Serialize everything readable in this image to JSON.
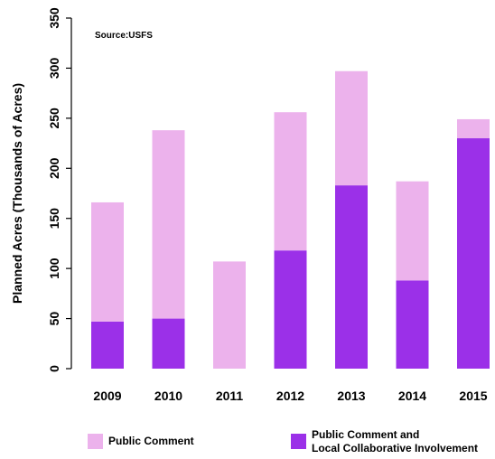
{
  "chart_data": {
    "type": "bar",
    "stacked": true,
    "categories": [
      "2009",
      "2010",
      "2011",
      "2012",
      "2013",
      "2014",
      "2015"
    ],
    "series": [
      {
        "name": "Public Comment and Local Collaborative Involvement",
        "color": "#9b30e8",
        "values": [
          47,
          50,
          0,
          118,
          183,
          88,
          230
        ]
      },
      {
        "name": "Public Comment",
        "color": "#ecb2ec",
        "values": [
          119,
          188,
          107,
          138,
          114,
          99,
          19
        ]
      }
    ],
    "totals": [
      166,
      238,
      107,
      256,
      297,
      187,
      249
    ],
    "ylabel": "Planned Acres (Thousands of Acres)",
    "xlabel": "",
    "ylim": [
      0,
      350
    ],
    "yticks": [
      "0",
      "50",
      "100",
      "150",
      "200",
      "250",
      "300",
      "350"
    ],
    "annotation": "Source:USFS",
    "grid": false,
    "legend": {
      "position": "bottom",
      "items": [
        {
          "lines": [
            "Public Comment"
          ],
          "color": "#ecb2ec"
        },
        {
          "lines": [
            "Public Comment and",
            "Local Collaborative Involvement"
          ],
          "color": "#9b30e8"
        }
      ]
    }
  }
}
